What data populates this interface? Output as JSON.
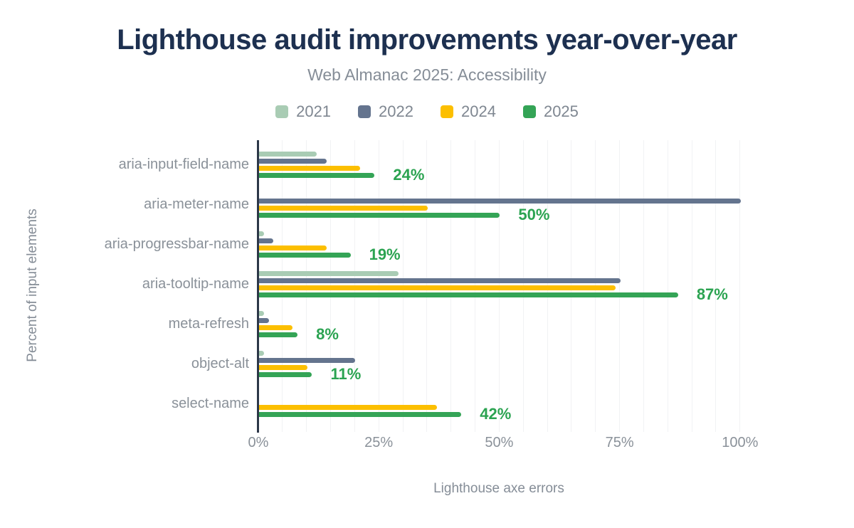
{
  "title": "Lighthouse audit improvements year-over-year",
  "subtitle": "Web Almanac 2025: Accessibility",
  "chart_data": {
    "type": "bar",
    "orientation": "horizontal",
    "title": "Lighthouse audit improvements year-over-year",
    "subtitle": "Web Almanac 2025: Accessibility",
    "xlabel": "Lighthouse axe errors",
    "ylabel": "Percent of input elements",
    "xlim": [
      0,
      100
    ],
    "x_ticks": [
      "0%",
      "25%",
      "50%",
      "75%",
      "100%"
    ],
    "grid": "vertical minor gridlines every 5%, from 0% to 100%",
    "legend_position": "top center",
    "categories": [
      "aria-input-field-name",
      "aria-meter-name",
      "aria-progressbar-name",
      "aria-tooltip-name",
      "meta-refresh",
      "object-alt",
      "select-name"
    ],
    "series": [
      {
        "name": "2021",
        "color": "#a9ccb4",
        "values": [
          12,
          null,
          1,
          29,
          1,
          1,
          null
        ]
      },
      {
        "name": "2022",
        "color": "#64748e",
        "values": [
          14,
          100,
          3,
          75,
          2,
          20,
          null
        ]
      },
      {
        "name": "2024",
        "color": "#fcbf00",
        "values": [
          21,
          35,
          14,
          74,
          7,
          10,
          37
        ]
      },
      {
        "name": "2025",
        "color": "#34a456",
        "values": [
          24,
          50,
          19,
          87,
          8,
          11,
          42
        ]
      }
    ],
    "data_labels": {
      "series": "2025",
      "color": "#2ba351",
      "values": [
        "24%",
        "50%",
        "19%",
        "87%",
        "8%",
        "11%",
        "42%"
      ]
    }
  },
  "colors": {
    "title": "#1d3050",
    "subtitle": "#858d97",
    "axis_text": "#8a9199",
    "axis_line": "#2c3748",
    "gridline": "#f1f2f4",
    "background": "#ffffff"
  }
}
